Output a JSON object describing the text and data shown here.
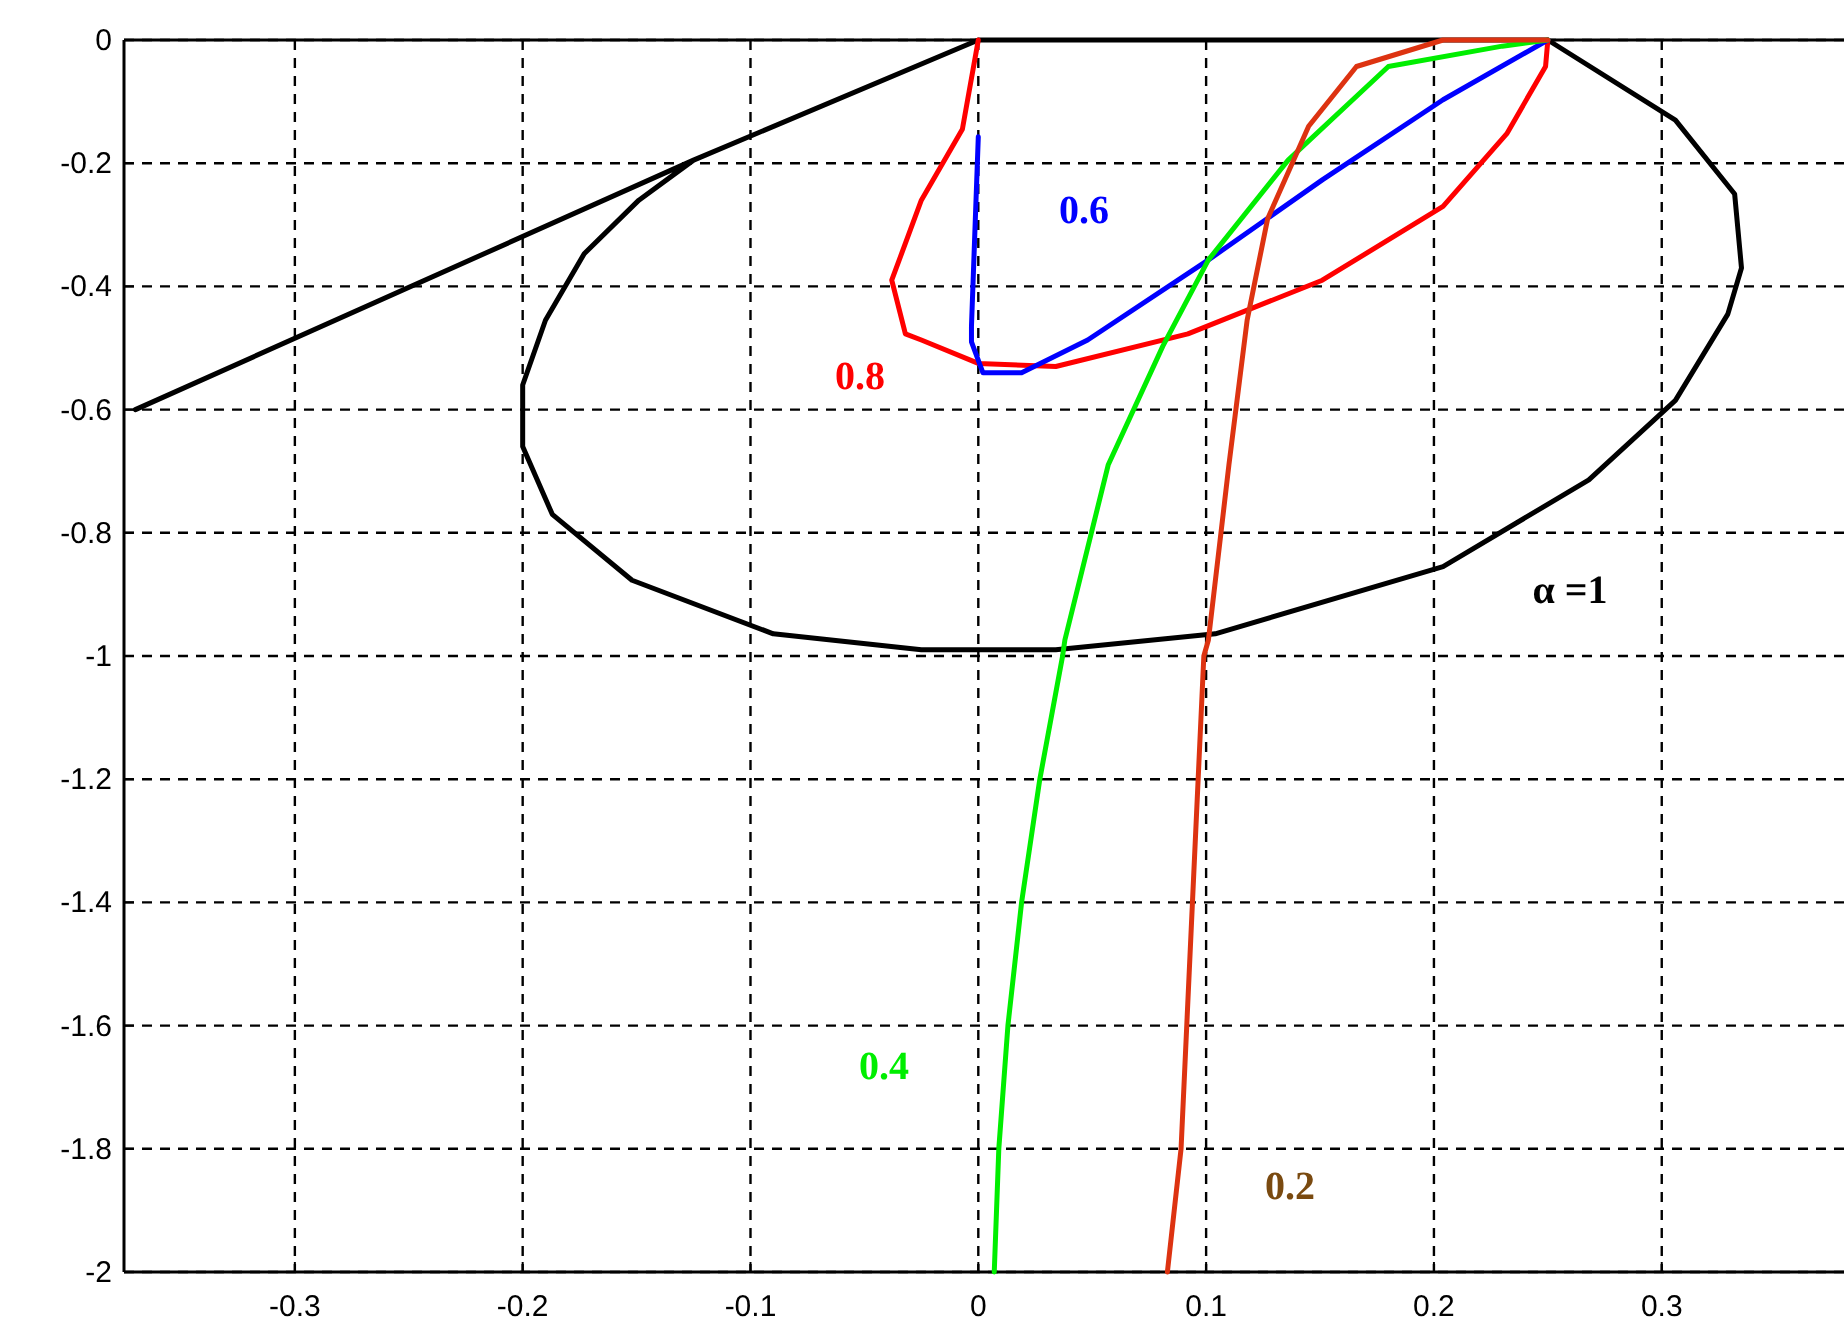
{
  "chart_data": {
    "type": "line",
    "xlim": [
      -0.375,
      0.38
    ],
    "ylim": [
      -2,
      0
    ],
    "xticks": [
      -0.3,
      -0.2,
      -0.1,
      0,
      0.1,
      0.2,
      0.3
    ],
    "yticks": [
      -2,
      -1.8,
      -1.6,
      -1.4,
      -1.2,
      -1,
      -0.8,
      -0.6,
      -0.4,
      -0.2,
      0
    ],
    "grid": true,
    "marker": "none",
    "line_style": "solid",
    "series": [
      {
        "name": "α =1",
        "color": "#000000",
        "x": [
          -0.37,
          -0.125,
          0,
          0.25,
          0.306,
          0.332,
          0.335,
          0.329,
          0.306,
          0.268,
          0.204,
          0.104,
          0.034,
          -0.025,
          -0.09,
          -0.152,
          -0.187,
          -0.2,
          -0.2,
          -0.19,
          -0.173,
          -0.149,
          -0.125
        ],
        "values": [
          -0.6,
          -0.195,
          0,
          0,
          -0.13,
          -0.25,
          -0.37,
          -0.445,
          -0.585,
          -0.714,
          -0.855,
          -0.964,
          -0.99,
          -0.99,
          -0.964,
          -0.877,
          -0.77,
          -0.66,
          -0.56,
          -0.455,
          -0.347,
          -0.26,
          -0.195
        ]
      },
      {
        "name": "0.8",
        "color": "#ff0000",
        "x": [
          0,
          -0.007,
          -0.025,
          -0.038,
          -0.032,
          -0.025,
          0,
          0.034,
          0.092,
          0.151,
          0.204,
          0.232,
          0.249,
          0.25
        ],
        "values": [
          0,
          -0.145,
          -0.26,
          -0.39,
          -0.477,
          -0.487,
          -0.525,
          -0.53,
          -0.477,
          -0.39,
          -0.27,
          -0.152,
          -0.043,
          0
        ]
      },
      {
        "name": "0.6",
        "color": "#0000ff",
        "x": [
          0,
          -0.003,
          -0.003,
          0.002,
          0.019,
          0.048,
          0.101,
          0.151,
          0.204,
          0.25
        ],
        "values": [
          -0.157,
          -0.465,
          -0.49,
          -0.54,
          -0.54,
          -0.487,
          -0.357,
          -0.227,
          -0.097,
          0
        ]
      },
      {
        "name": "0.4",
        "color": "#00ee00",
        "x": [
          0.25,
          0.23,
          0.18,
          0.136,
          0.101,
          0.081,
          0.057,
          0.038,
          0.037,
          0.027,
          0.019,
          0.013,
          0.009,
          0.007
        ],
        "values": [
          0,
          -0.01,
          -0.043,
          -0.195,
          -0.357,
          -0.497,
          -0.69,
          -0.974,
          -1,
          -1.2,
          -1.4,
          -1.6,
          -1.8,
          -2
        ]
      },
      {
        "name": "0.2",
        "color": "#dd3311",
        "x": [
          0.25,
          0.204,
          0.166,
          0.145,
          0.127,
          0.118,
          0.11,
          0.101,
          0.099,
          0.094,
          0.089,
          0.083
        ],
        "values": [
          0,
          0,
          -0.043,
          -0.14,
          -0.29,
          -0.455,
          -0.69,
          -0.974,
          -1,
          -1.4,
          -1.8,
          -2
        ]
      }
    ]
  }
}
